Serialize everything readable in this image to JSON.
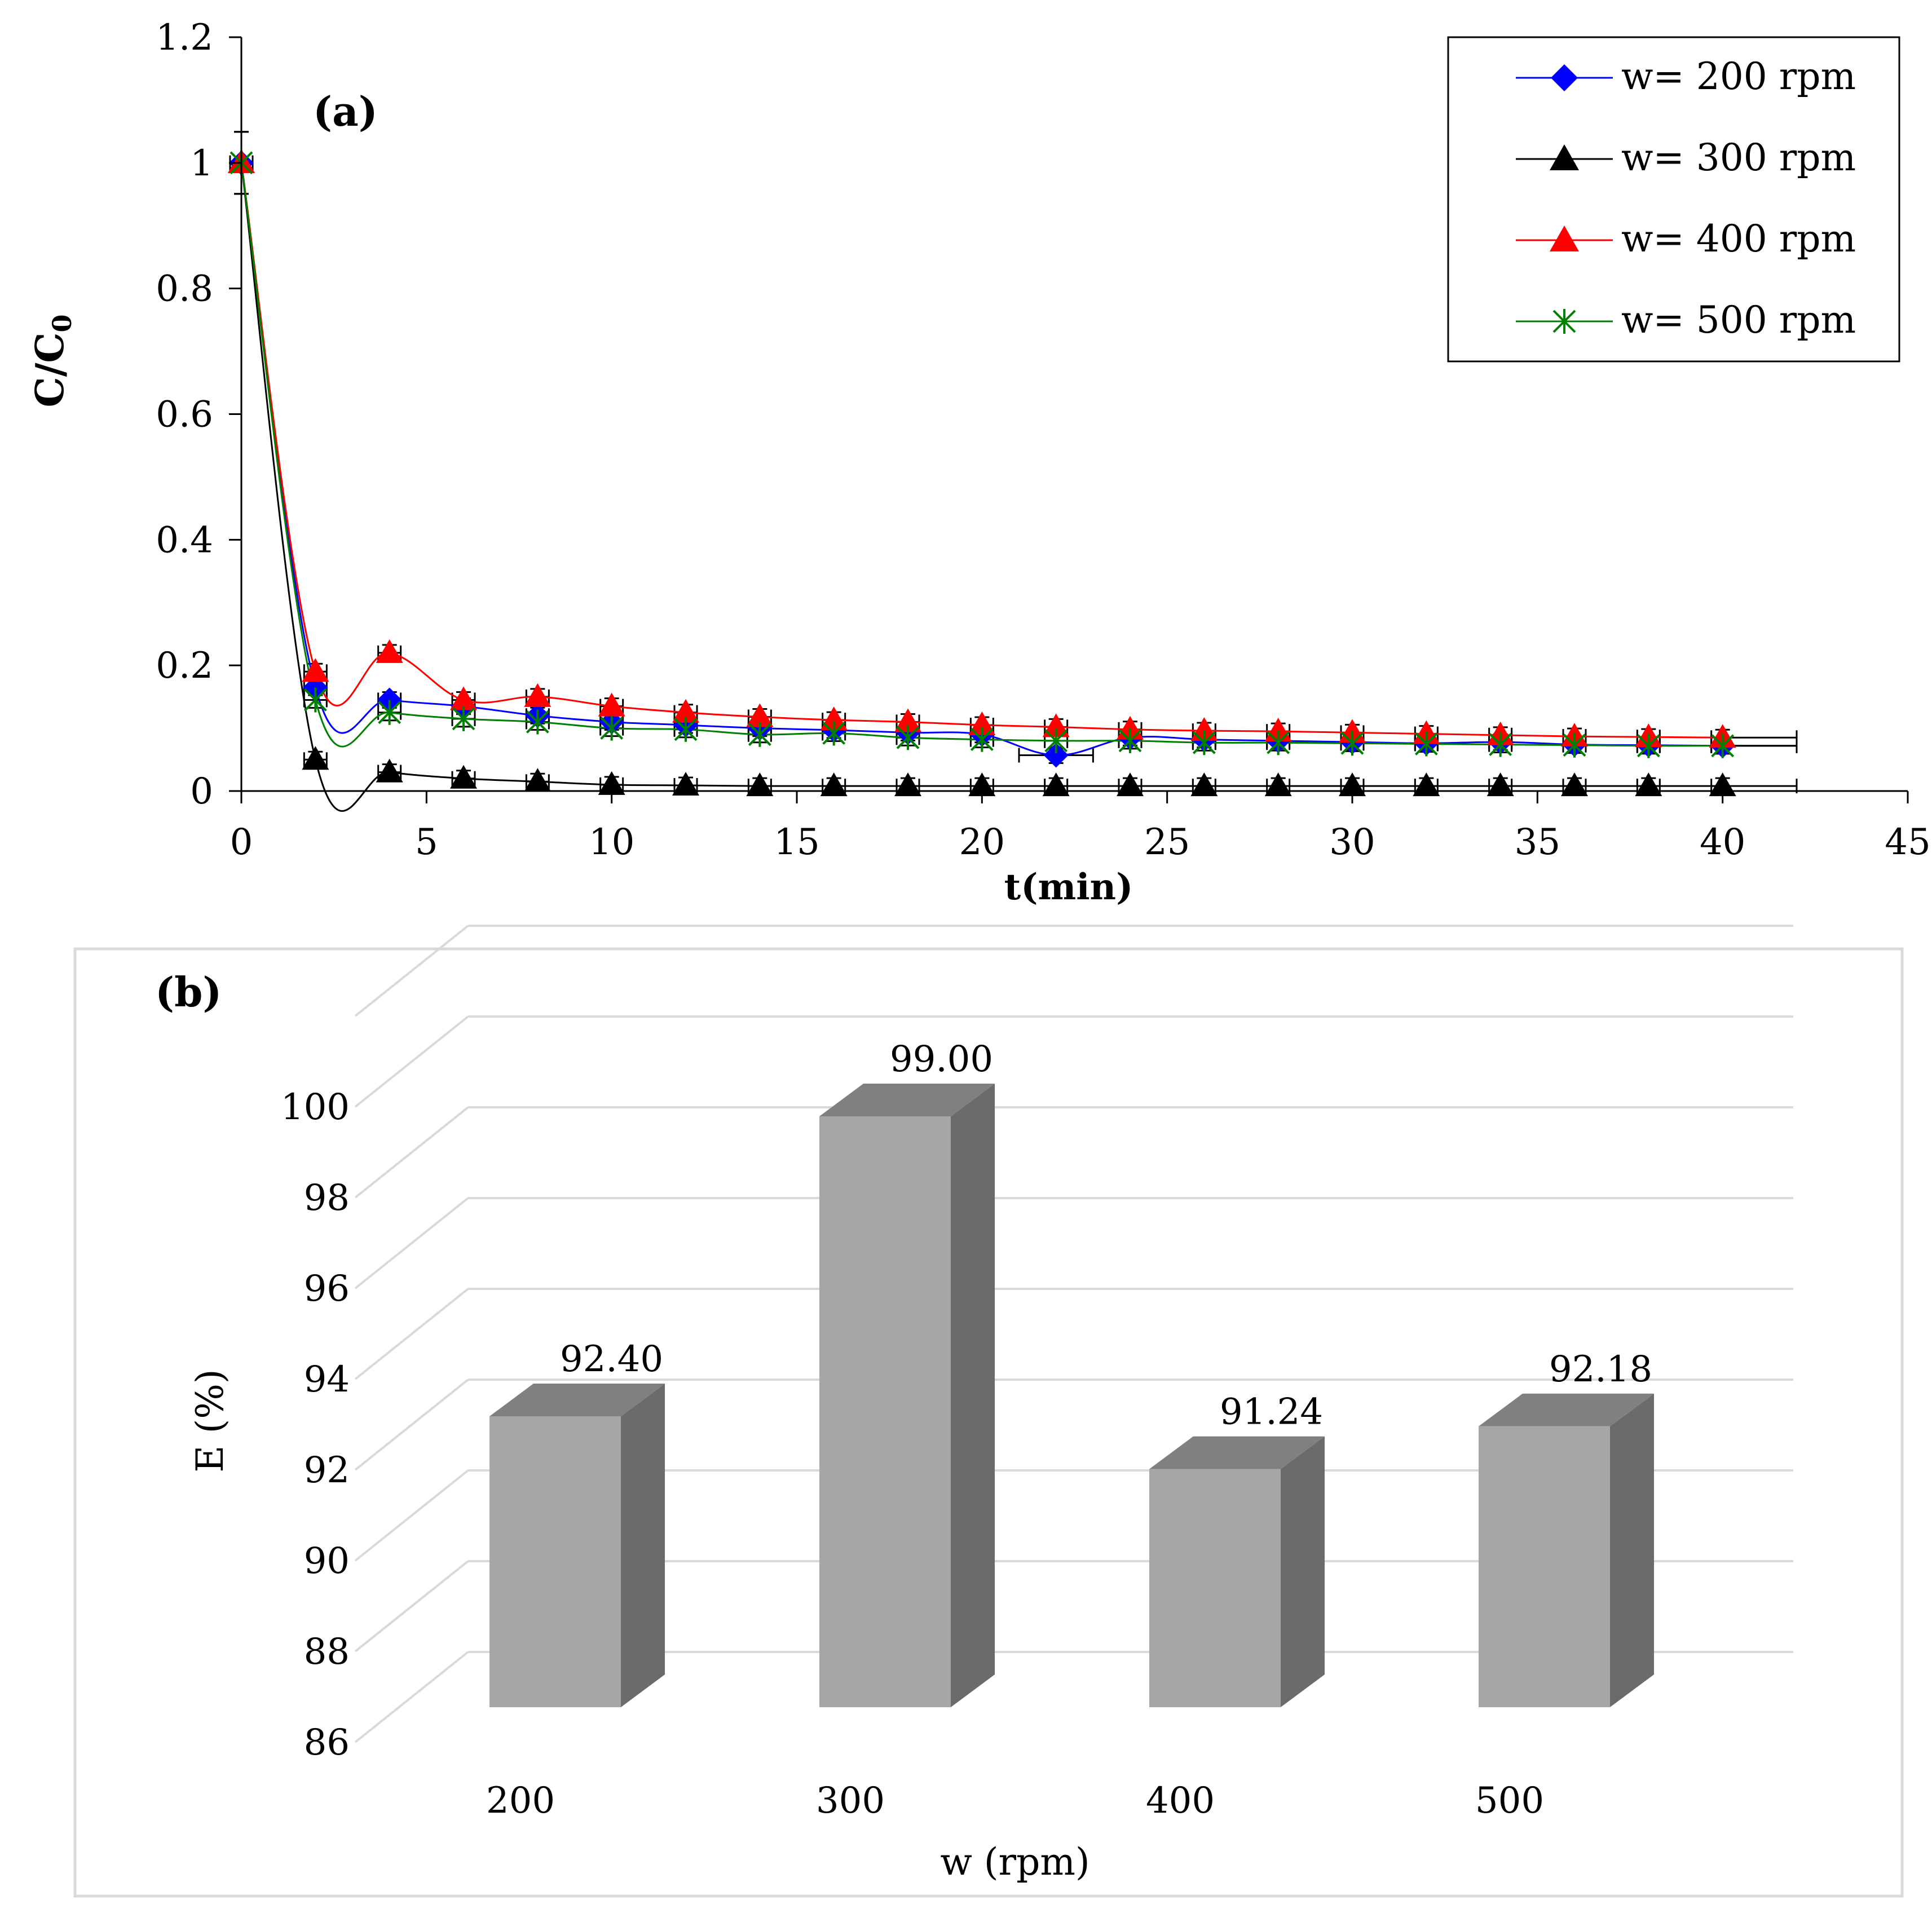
{
  "chart_data": [
    {
      "type": "line",
      "panel_label": "(a)",
      "title": "",
      "xlabel": "t(min)",
      "ylabel_main": "C/C",
      "ylabel_sub": "0",
      "xlim": [
        0,
        45
      ],
      "ylim": [
        0,
        1.2
      ],
      "x_ticks": [
        "0",
        "5",
        "10",
        "15",
        "20",
        "25",
        "30",
        "35",
        "40",
        "45"
      ],
      "y_ticks": [
        "0",
        "0.2",
        "0.4",
        "0.6",
        "0.8",
        "1",
        "1.2"
      ],
      "grid": false,
      "legend_position": "top-right",
      "x": [
        0,
        2,
        4,
        6,
        8,
        10,
        12,
        14,
        16,
        18,
        20,
        22,
        24,
        26,
        28,
        30,
        32,
        34,
        36,
        38,
        40
      ],
      "series": [
        {
          "name": "w= 200 rpm",
          "color": "#0000ff",
          "marker": "diamond",
          "values": [
            1.0,
            0.165,
            0.145,
            0.135,
            0.12,
            0.11,
            0.105,
            0.1,
            0.097,
            0.093,
            0.09,
            0.057,
            0.085,
            0.082,
            0.08,
            0.078,
            0.076,
            0.078,
            0.074,
            0.073,
            0.072
          ]
        },
        {
          "name": "w= 300 rpm",
          "color": "#000000",
          "marker": "triangle",
          "values": [
            1.0,
            0.05,
            0.03,
            0.02,
            0.015,
            0.01,
            0.009,
            0.008,
            0.008,
            0.008,
            0.008,
            0.008,
            0.008,
            0.008,
            0.008,
            0.008,
            0.008,
            0.008,
            0.008,
            0.008,
            0.008
          ]
        },
        {
          "name": "w= 400 rpm",
          "color": "#ff0000",
          "marker": "triangle",
          "values": [
            1.0,
            0.19,
            0.22,
            0.145,
            0.15,
            0.135,
            0.125,
            0.118,
            0.113,
            0.11,
            0.105,
            0.102,
            0.098,
            0.096,
            0.095,
            0.093,
            0.091,
            0.089,
            0.087,
            0.086,
            0.085
          ]
        },
        {
          "name": "w= 500 rpm",
          "color": "#008000",
          "marker": "asterisk",
          "values": [
            1.0,
            0.145,
            0.125,
            0.115,
            0.11,
            0.1,
            0.098,
            0.09,
            0.092,
            0.085,
            0.082,
            0.08,
            0.08,
            0.077,
            0.077,
            0.076,
            0.075,
            0.074,
            0.073,
            0.072,
            0.072
          ]
        }
      ]
    },
    {
      "type": "bar",
      "panel_label": "(b)",
      "title": "",
      "xlabel": "w (rpm)",
      "ylabel": "E (%)",
      "ylim": [
        86,
        100
      ],
      "y_ticks": [
        "86",
        "88",
        "90",
        "92",
        "94",
        "96",
        "98",
        "100"
      ],
      "categories": [
        "200",
        "300",
        "400",
        "500"
      ],
      "values": [
        92.4,
        99.0,
        91.24,
        92.18
      ],
      "value_labels": [
        "92.40",
        "99.00",
        "91.24",
        "92.18"
      ],
      "bar_color_front": "#a6a6a6",
      "bar_color_side": "#6b6b6b",
      "bar_color_top": "#808080",
      "grid": true
    }
  ]
}
